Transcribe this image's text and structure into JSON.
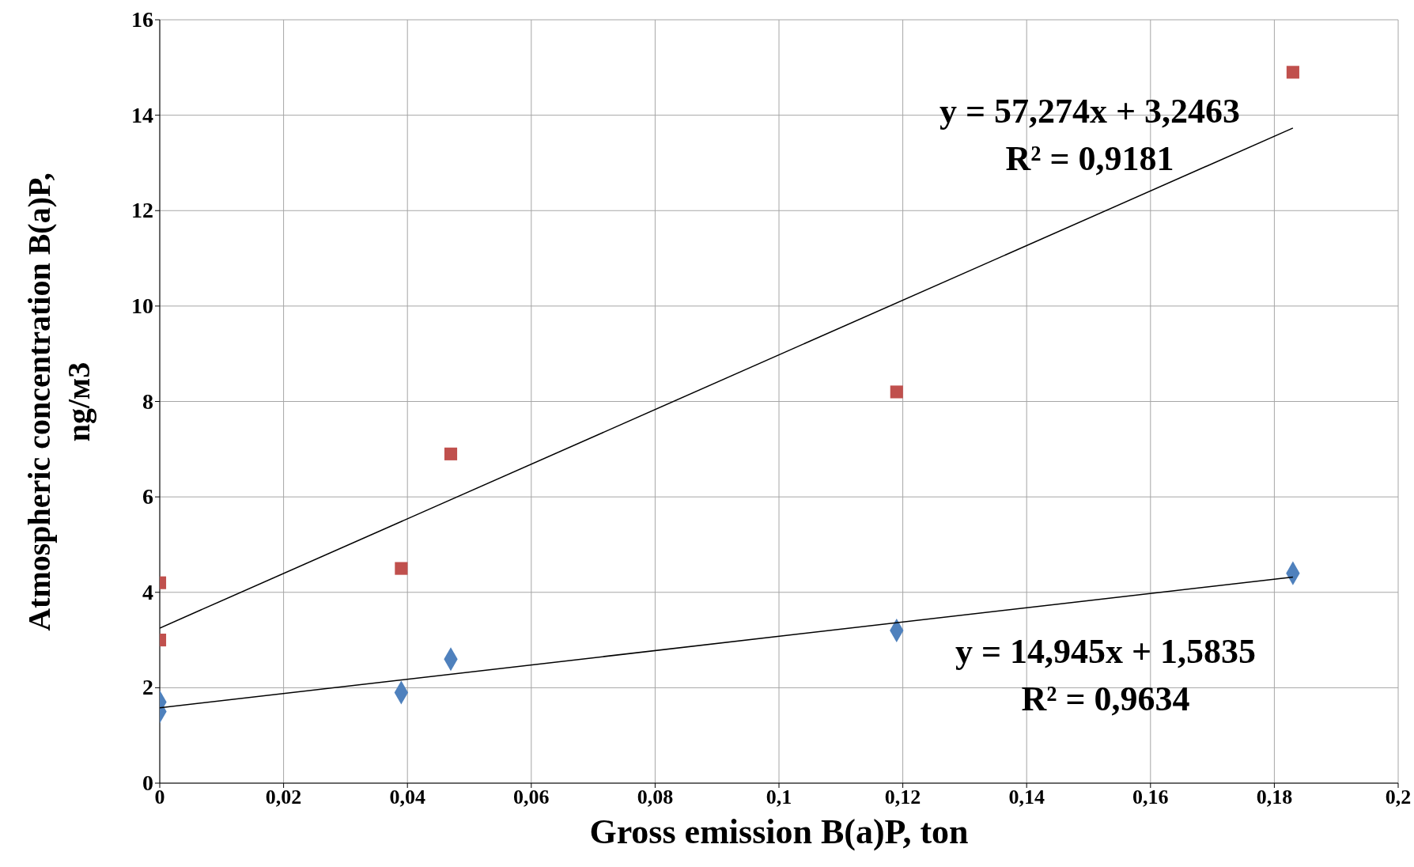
{
  "chart_data": {
    "type": "scatter",
    "xlabel": "Gross emission B(a)P, ton",
    "ylabel": "Atmospheric concentration B(a)P,\nng/м3",
    "series": [
      {
        "type": "scatter",
        "color": "#c0504d",
        "marker": "square",
        "x": [
          0,
          0,
          0.039,
          0.047,
          0.119,
          0.183
        ],
        "values": [
          4.2,
          3.0,
          4.5,
          6.9,
          8.2,
          14.9
        ]
      },
      {
        "type": "scatter",
        "color": "#4f81bd",
        "marker": "diamond",
        "x": [
          0,
          0,
          0.039,
          0.047,
          0.119,
          0.183
        ],
        "values": [
          1.7,
          1.5,
          1.9,
          2.6,
          3.2,
          4.4
        ]
      },
      {
        "type": "line",
        "color": "#000000",
        "x": [
          0,
          0.183
        ],
        "values": [
          3.25,
          13.73
        ]
      },
      {
        "type": "line",
        "color": "#000000",
        "x": [
          0,
          0.183
        ],
        "values": [
          1.58,
          4.32
        ]
      }
    ],
    "annotations": [
      "y = 57,274x + 3,2463",
      "R² = 0,9181",
      "y = 14,945x + 1,5835",
      "R² = 0,9634"
    ],
    "xlim": [
      0,
      0.2
    ],
    "xticks": [
      {
        "value": 0,
        "label": "0"
      },
      {
        "value": 0.02,
        "label": "0,02"
      },
      {
        "value": 0.04,
        "label": "0,04"
      },
      {
        "value": 0.06,
        "label": "0,06"
      },
      {
        "value": 0.08,
        "label": "0,08"
      },
      {
        "value": 0.1,
        "label": "0,1"
      },
      {
        "value": 0.12,
        "label": "0,12"
      },
      {
        "value": 0.14,
        "label": "0,14"
      },
      {
        "value": 0.16,
        "label": "0,16"
      },
      {
        "value": 0.18,
        "label": "0,18"
      },
      {
        "value": 0.2,
        "label": "0,2"
      }
    ],
    "ylim": [
      0,
      16
    ],
    "yticks": [
      0,
      2,
      4,
      6,
      8,
      10,
      12,
      14,
      16
    ],
    "grid": true
  }
}
